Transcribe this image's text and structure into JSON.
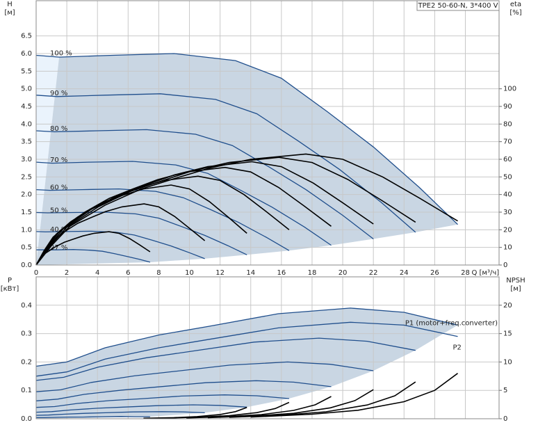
{
  "chart_data": [
    {
      "type": "line",
      "title": "TPE2 50-60-N, 3*400 V",
      "y_label": "H",
      "y_unit": "[м]",
      "y2_label": "eta",
      "y2_unit": "[%]",
      "x_label": "Q [м³/ч]",
      "xlim": [
        0,
        30.2
      ],
      "xticks": [
        0,
        2,
        4,
        6,
        8,
        10,
        12,
        14,
        16,
        18,
        20,
        22,
        24,
        26,
        28
      ],
      "ylim": [
        0,
        7.5
      ],
      "yticks": [
        {
          "value": 0,
          "label": "0.0"
        },
        0.5,
        {
          "value": 1,
          "label": "1.0"
        },
        1.5,
        {
          "value": 2,
          "label": "2.0"
        },
        2.5,
        {
          "value": 3,
          "label": "3.0"
        },
        3.5,
        {
          "value": 4,
          "label": "4.0"
        },
        4.5,
        {
          "value": 5,
          "label": "5.0"
        },
        5.5,
        {
          "value": 6,
          "label": "6.0"
        },
        6.5
      ],
      "y2lim": [
        0,
        150
      ],
      "y2ticks": [
        0,
        10,
        20,
        30,
        40,
        50,
        60,
        70,
        80,
        90,
        100
      ],
      "grid": true,
      "fill_color": "#c9d6e3",
      "fill_color_light": "#eaf3fc",
      "series": [
        {
          "name": "100 %",
          "color": "#1f4e8c",
          "x": [
            0,
            1.5,
            5,
            9,
            13,
            16,
            19,
            22,
            25,
            27.5
          ],
          "values": [
            5.95,
            5.9,
            5.95,
            6.0,
            5.8,
            5.3,
            4.35,
            3.35,
            2.2,
            1.15
          ]
        },
        {
          "name": "90 %",
          "color": "#1f4e8c",
          "x": [
            0,
            1.35,
            4.5,
            8.1,
            11.7,
            14.4,
            17.1,
            19.8,
            22.5,
            24.75
          ],
          "values": [
            4.82,
            4.78,
            4.82,
            4.86,
            4.7,
            4.29,
            3.52,
            2.71,
            1.78,
            0.93
          ]
        },
        {
          "name": "80 %",
          "color": "#1f4e8c",
          "x": [
            0,
            1.2,
            4,
            7.2,
            10.4,
            12.8,
            15.2,
            17.6,
            20,
            22
          ],
          "values": [
            3.81,
            3.78,
            3.81,
            3.84,
            3.71,
            3.39,
            2.78,
            2.14,
            1.41,
            0.74
          ]
        },
        {
          "name": "70 %",
          "color": "#1f4e8c",
          "x": [
            0,
            1.05,
            3.5,
            6.3,
            9.1,
            11.2,
            13.3,
            15.4,
            17.5,
            19.25
          ],
          "values": [
            2.92,
            2.89,
            2.92,
            2.94,
            2.84,
            2.6,
            2.13,
            1.64,
            1.08,
            0.56
          ]
        },
        {
          "name": "60 %",
          "color": "#1f4e8c",
          "x": [
            0,
            0.9,
            3,
            5.4,
            7.8,
            9.6,
            11.4,
            13.2,
            15,
            16.5
          ],
          "values": [
            2.14,
            2.12,
            2.14,
            2.16,
            2.09,
            1.91,
            1.57,
            1.21,
            0.79,
            0.41
          ]
        },
        {
          "name": "50 %",
          "color": "#1f4e8c",
          "x": [
            0,
            0.75,
            2.5,
            4.5,
            6.5,
            8,
            9.5,
            11,
            12.5,
            13.75
          ],
          "values": [
            1.49,
            1.48,
            1.49,
            1.5,
            1.45,
            1.33,
            1.09,
            0.84,
            0.55,
            0.29
          ]
        },
        {
          "name": "40 %",
          "color": "#1f4e8c",
          "x": [
            0,
            0.6,
            2,
            3.6,
            5.2,
            6.4,
            7.6,
            8.8,
            10,
            11
          ],
          "values": [
            0.95,
            0.94,
            0.95,
            0.96,
            0.93,
            0.85,
            0.7,
            0.54,
            0.35,
            0.18
          ]
        },
        {
          "name": "27 %",
          "color": "#1f4e8c",
          "x": [
            0,
            0.41,
            1.35,
            2.43,
            3.51,
            4.32,
            5.13,
            5.94,
            6.75,
            7.43
          ],
          "values": [
            0.43,
            0.43,
            0.43,
            0.44,
            0.42,
            0.39,
            0.32,
            0.24,
            0.16,
            0.08
          ]
        },
        {
          "color": "#000000",
          "axis": "y2",
          "x": [
            0,
            1,
            2.2,
            4.5,
            6.8,
            9,
            11.3,
            14,
            17.6,
            20,
            22.6,
            25,
            27.5
          ],
          "values": [
            0,
            11,
            22,
            34,
            43,
            49,
            55,
            60,
            63,
            60,
            50,
            38,
            25
          ]
        },
        {
          "color": "#000000",
          "axis": "y2",
          "x": [
            0,
            0.9,
            1.98,
            4.05,
            6.12,
            8.1,
            10.17,
            12.6,
            15.84,
            18,
            20.34,
            22.5,
            24.75
          ],
          "values": [
            0,
            10.7,
            21.3,
            33,
            41.7,
            47.5,
            53.4,
            58.2,
            61.1,
            58.2,
            48.5,
            36.9,
            24.3
          ]
        },
        {
          "color": "#000000",
          "axis": "y2",
          "x": [
            0,
            0.8,
            1.76,
            3.6,
            5.44,
            7.2,
            9.04,
            11.2,
            14.08,
            16,
            18.08,
            20,
            22
          ],
          "values": [
            0,
            10.2,
            20.5,
            31.6,
            40,
            45.6,
            51.2,
            55.8,
            58.6,
            55.8,
            46.5,
            35.3,
            23.3
          ]
        },
        {
          "color": "#000000",
          "axis": "y2",
          "x": [
            0,
            0.7,
            1.54,
            3.15,
            4.76,
            6.3,
            7.91,
            9.8,
            12.32,
            14,
            15.82,
            17.5,
            19.25
          ],
          "values": [
            0,
            9.7,
            19.4,
            29.9,
            37.8,
            43.1,
            48.4,
            52.8,
            55.4,
            52.8,
            44,
            33.4,
            22
          ]
        },
        {
          "color": "#000000",
          "axis": "y2",
          "x": [
            0,
            0.6,
            1.32,
            2.7,
            4.08,
            5.4,
            6.78,
            8.4,
            10.56,
            12,
            13.56,
            15,
            16.5
          ],
          "values": [
            0,
            8.8,
            17.6,
            27.2,
            34.4,
            39.2,
            44,
            48,
            50.4,
            48,
            40,
            30.4,
            20
          ]
        },
        {
          "color": "#000000",
          "axis": "y2",
          "x": [
            0,
            0.5,
            1.1,
            2.25,
            3.4,
            4.5,
            5.65,
            7,
            8.8,
            10,
            11.3,
            12.5,
            13.75
          ],
          "values": [
            0,
            7.9,
            15.8,
            24.5,
            31,
            35.3,
            39.6,
            43.2,
            45.4,
            43.2,
            36,
            27.4,
            18
          ]
        },
        {
          "color": "#000000",
          "axis": "y2",
          "x": [
            0,
            0.4,
            0.88,
            1.8,
            2.72,
            3.6,
            4.52,
            5.6,
            7.04,
            8,
            9.04,
            10,
            11
          ],
          "values": [
            0,
            6.1,
            12.1,
            18.7,
            23.7,
            27,
            30.3,
            33,
            34.7,
            33,
            27.5,
            20.9,
            13.8
          ]
        },
        {
          "color": "#000000",
          "axis": "y2",
          "x": [
            0,
            0.27,
            0.59,
            1.22,
            1.84,
            2.43,
            3.05,
            3.78,
            4.75,
            5.4,
            6.1,
            6.75,
            7.43
          ],
          "values": [
            0,
            3.3,
            6.6,
            10.2,
            12.9,
            14.7,
            16.5,
            18,
            18.9,
            18,
            15,
            11.4,
            7.5
          ]
        }
      ]
    },
    {
      "type": "line",
      "y_label": "P",
      "y_unit": "[кВт]",
      "y2_label": "NPSH",
      "y2_unit": "[м]",
      "xlim": [
        0,
        30.2
      ],
      "xticks": [
        0,
        2,
        4,
        6,
        8,
        10,
        12,
        14,
        16,
        18,
        20,
        22,
        24,
        26,
        28
      ],
      "ylim": [
        0,
        0.5
      ],
      "yticks": [
        {
          "value": 0,
          "label": "0.0"
        },
        0.1,
        0.2,
        0.3,
        0.4
      ],
      "y2lim": [
        0,
        25
      ],
      "y2ticks": [
        0,
        5,
        10,
        15,
        20
      ],
      "grid": true,
      "fill_color": "#c9d6e3",
      "series": [
        {
          "name": "P1 (motor+freq.converter)",
          "color": "#1f4e8c",
          "x": [
            0,
            2,
            4.5,
            8,
            11.3,
            15.8,
            20.5,
            24,
            27.5
          ],
          "values": [
            0.185,
            0.2,
            0.25,
            0.295,
            0.326,
            0.37,
            0.39,
            0.375,
            0.33
          ]
        },
        {
          "color": "#1f4e8c",
          "x": [
            0,
            1.8,
            4.05,
            7.2,
            10.17,
            14.22,
            18.45,
            21.6,
            24.75
          ],
          "values": [
            0.135,
            0.146,
            0.182,
            0.215,
            0.238,
            0.27,
            0.284,
            0.273,
            0.241
          ]
        },
        {
          "color": "#1f4e8c",
          "x": [
            0,
            1.6,
            3.6,
            6.4,
            9.04,
            12.64,
            16.4,
            19.2,
            22
          ],
          "values": [
            0.095,
            0.102,
            0.128,
            0.151,
            0.167,
            0.189,
            0.2,
            0.192,
            0.169
          ]
        },
        {
          "color": "#1f4e8c",
          "x": [
            0,
            1.4,
            3.15,
            5.6,
            7.91,
            11.06,
            14.35,
            16.8,
            19.25
          ],
          "values": [
            0.063,
            0.069,
            0.086,
            0.101,
            0.112,
            0.127,
            0.134,
            0.129,
            0.113
          ]
        },
        {
          "color": "#1f4e8c",
          "x": [
            0,
            1.2,
            2.7,
            4.8,
            6.78,
            9.48,
            12.3,
            14.4,
            16.5
          ],
          "values": [
            0.04,
            0.043,
            0.054,
            0.064,
            0.07,
            0.08,
            0.084,
            0.081,
            0.071
          ]
        },
        {
          "color": "#1f4e8c",
          "x": [
            0,
            1,
            2.25,
            4,
            5.65,
            7.9,
            10.25,
            12,
            13.75
          ],
          "values": [
            0.023,
            0.025,
            0.031,
            0.037,
            0.041,
            0.046,
            0.049,
            0.047,
            0.041
          ]
        },
        {
          "color": "#1f4e8c",
          "x": [
            0,
            0.8,
            1.8,
            3.2,
            4.52,
            6.32,
            8.2,
            9.6,
            11
          ],
          "values": [
            0.012,
            0.013,
            0.016,
            0.019,
            0.021,
            0.024,
            0.025,
            0.024,
            0.021
          ]
        },
        {
          "color": "#1f4e8c",
          "x": [
            0,
            0.54,
            1.22,
            2.16,
            3.05,
            4.27,
            5.54,
            6.48,
            7.43
          ],
          "values": [
            0.004,
            0.004,
            0.005,
            0.006,
            0.006,
            0.007,
            0.008,
            0.007,
            0.007
          ]
        },
        {
          "name": "P2",
          "color": "#1f4e8c",
          "x": [
            0,
            2,
            4.5,
            8,
            11.3,
            15.8,
            20.5,
            24,
            27.5
          ],
          "values": [
            0.15,
            0.165,
            0.21,
            0.25,
            0.28,
            0.32,
            0.34,
            0.33,
            0.29
          ]
        },
        {
          "color": "#000000",
          "axis": "y2",
          "x": [
            14,
            18,
            21,
            24,
            26,
            27.5
          ],
          "values": [
            0.3,
            0.8,
            1.5,
            3,
            5,
            8
          ]
        },
        {
          "color": "#000000",
          "axis": "y2",
          "x": [
            12.6,
            16.2,
            18.9,
            21.6,
            23.4,
            24.75
          ],
          "values": [
            0.24,
            0.65,
            1.22,
            2.43,
            4.05,
            6.48
          ]
        },
        {
          "color": "#000000",
          "axis": "y2",
          "x": [
            11.2,
            14.4,
            16.8,
            19.2,
            20.8,
            22
          ],
          "values": [
            0.19,
            0.51,
            0.96,
            1.92,
            3.2,
            5.12
          ]
        },
        {
          "color": "#000000",
          "axis": "y2",
          "x": [
            9.8,
            12.6,
            14.7,
            16.8,
            18.2,
            19.25
          ],
          "values": [
            0.15,
            0.39,
            0.74,
            1.47,
            2.45,
            3.92
          ]
        },
        {
          "color": "#000000",
          "axis": "y2",
          "x": [
            8.4,
            10.8,
            12.6,
            14.4,
            15.6,
            16.5
          ],
          "values": [
            0.11,
            0.29,
            0.54,
            1.08,
            1.8,
            2.88
          ]
        },
        {
          "color": "#000000",
          "axis": "y2",
          "x": [
            7,
            9,
            10.5,
            12,
            13,
            13.75
          ],
          "values": [
            0.08,
            0.2,
            0.38,
            0.75,
            1.25,
            2
          ]
        }
      ]
    }
  ]
}
